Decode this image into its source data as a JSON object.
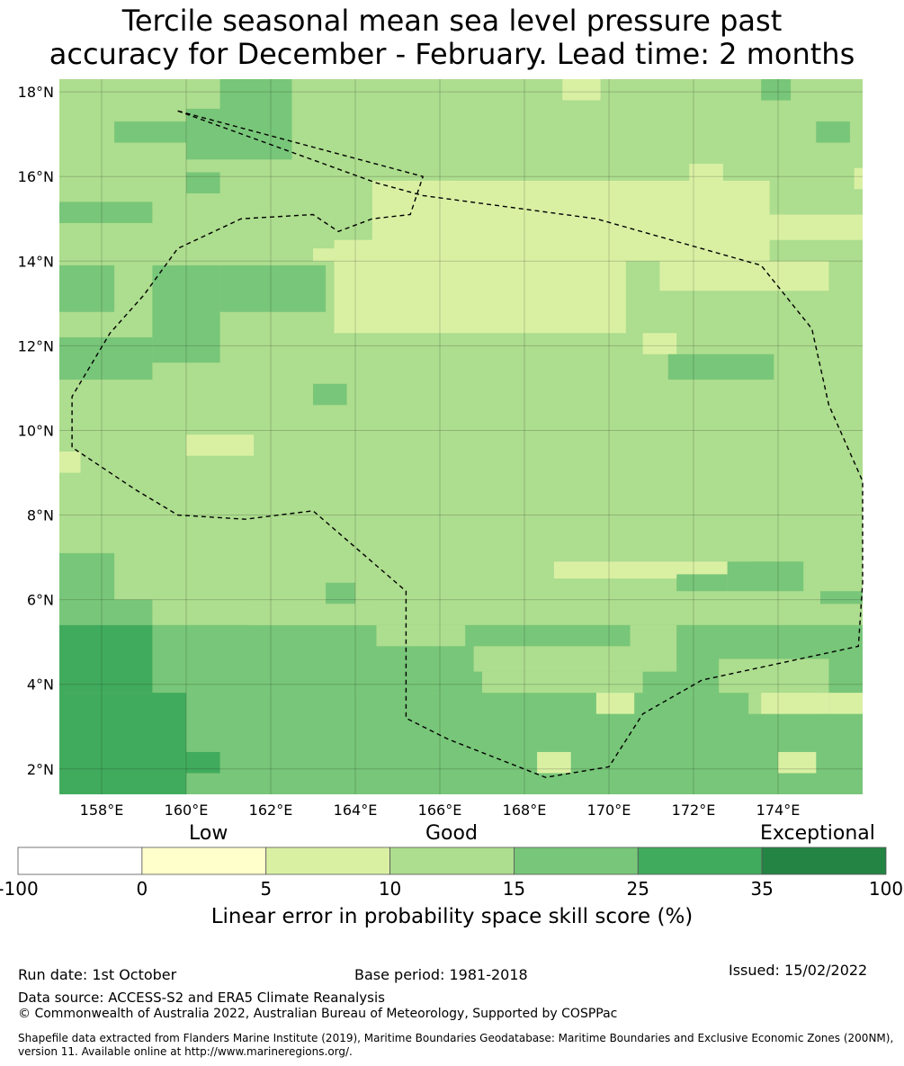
{
  "title": {
    "line1": "Tercile seasonal mean sea level pressure past",
    "line2": "accuracy for December - February. Lead time: 2 months"
  },
  "map": {
    "lat_range": [
      1.4,
      18.3
    ],
    "lon_range": [
      157.0,
      176.0
    ],
    "lat_ticks": [
      {
        "value": 2,
        "label": "2°N"
      },
      {
        "value": 4,
        "label": "4°N"
      },
      {
        "value": 6,
        "label": "6°N"
      },
      {
        "value": 8,
        "label": "8°N"
      },
      {
        "value": 10,
        "label": "10°N"
      },
      {
        "value": 12,
        "label": "12°N"
      },
      {
        "value": 14,
        "label": "14°N"
      },
      {
        "value": 16,
        "label": "16°N"
      },
      {
        "value": 18,
        "label": "18°N"
      }
    ],
    "lon_ticks": [
      {
        "value": 158,
        "label": "158°E"
      },
      {
        "value": 160,
        "label": "160°E"
      },
      {
        "value": 162,
        "label": "162°E"
      },
      {
        "value": 164,
        "label": "164°E"
      },
      {
        "value": 166,
        "label": "166°E"
      },
      {
        "value": 168,
        "label": "168°E"
      },
      {
        "value": 170,
        "label": "170°E"
      },
      {
        "value": 172,
        "label": "172°E"
      },
      {
        "value": 174,
        "label": "174°E"
      }
    ],
    "eez_boundary": [
      [
        159.8,
        17.55
      ],
      [
        164.5,
        15.85
      ],
      [
        165.6,
        15.55
      ],
      [
        169.7,
        15.0
      ],
      [
        173.6,
        13.9
      ],
      [
        174.8,
        12.4
      ],
      [
        175.2,
        10.6
      ],
      [
        176.0,
        8.8
      ],
      [
        176.0,
        6.4
      ],
      [
        175.9,
        4.9
      ],
      [
        172.2,
        4.1
      ],
      [
        170.8,
        3.3
      ],
      [
        170.0,
        2.05
      ],
      [
        168.5,
        1.8
      ],
      [
        166.2,
        2.7
      ],
      [
        165.2,
        3.2
      ],
      [
        165.2,
        6.2
      ],
      [
        163.0,
        8.1
      ],
      [
        161.4,
        7.9
      ],
      [
        159.8,
        8.0
      ],
      [
        158.8,
        8.6
      ],
      [
        157.3,
        9.6
      ],
      [
        157.3,
        10.8
      ],
      [
        158.2,
        12.3
      ],
      [
        159.0,
        13.2
      ],
      [
        159.8,
        14.3
      ],
      [
        161.3,
        15.0
      ],
      [
        163.0,
        15.1
      ],
      [
        163.6,
        14.7
      ],
      [
        164.4,
        15.0
      ],
      [
        165.3,
        15.1
      ],
      [
        165.6,
        16.0
      ],
      [
        159.8,
        17.55
      ]
    ]
  },
  "colorbar": {
    "categories": [
      "Low",
      "Good",
      "Exceptional"
    ],
    "tick_labels": [
      "-100",
      "0",
      "5",
      "10",
      "15",
      "25",
      "35",
      "100"
    ],
    "colors": [
      "#ffffff",
      "#ffffcc",
      "#d9f0a3",
      "#addd8e",
      "#78c679",
      "#41ab5d",
      "#238443"
    ],
    "label": "Linear error in probability space skill score (%)"
  },
  "footer": {
    "run_date": "Run date: 1st October",
    "base_period": "Base period: 1981-2018",
    "issued": "Issued: 15/02/2022",
    "data_source": "Data source: ACCESS-S2 and ERA5 Climate Reanalysis",
    "copyright": "© Commonwealth of Australia 2022, Australian Bureau of Meteorology, Supported by COSPPac",
    "shapefile_line1": "Shapefile data extracted from Flanders Marine Institute (2019), Maritime Boundaries Geodatabase: Maritime Boundaries and Exclusive Economic Zones (200NM),",
    "shapefile_line2": "version 11. Available online at http://www.marineregions.org/."
  }
}
